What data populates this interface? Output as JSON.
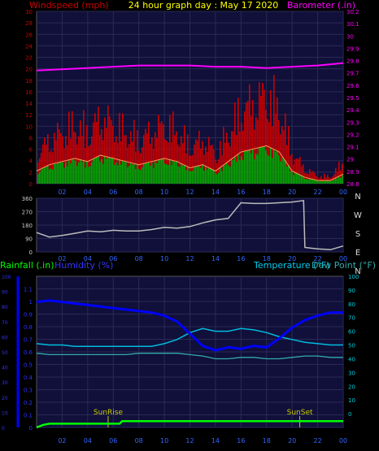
{
  "header": {
    "left_label": "Windspeed (mph)",
    "title": "24 hour graph day : May 17 2020",
    "right_label": "Barometer (.in)"
  },
  "colors": {
    "windspeed": "#cc0000",
    "windspeed_avg": "#ff3333",
    "gust_trend": "#ff9955",
    "wind_green": "#00aa00",
    "barometer": "#ff00ff",
    "direction": "#bbbbbb",
    "rainfall": "#00ff00",
    "humidity": "#0000ff",
    "temperature": "#00bbdd",
    "dewpoint": "#33aaaa",
    "sun_marker": "#cccc00",
    "plot_bg": "#10103a",
    "grid": "#2a2a55"
  },
  "chart_data": [
    {
      "type": "line",
      "name": "wind-barometer",
      "x_ticks": [
        "02",
        "04",
        "06",
        "08",
        "10",
        "12",
        "14",
        "16",
        "18",
        "20",
        "22",
        "00"
      ],
      "left_axis": {
        "label": "Windspeed (mph)",
        "ylim": [
          0,
          30
        ],
        "ticks": [
          "0",
          "2",
          "4",
          "6",
          "8",
          "10",
          "12",
          "14",
          "16",
          "18",
          "20",
          "22",
          "24",
          "26",
          "28",
          "30"
        ]
      },
      "right_axis": {
        "label": "Barometer (.in)",
        "ylim": [
          28.8,
          30.2
        ],
        "ticks": [
          "28.8",
          "28.9",
          "29",
          "29.1",
          "29.2",
          "29.3",
          "29.4",
          "29.5",
          "29.6",
          "29.7",
          "29.8",
          "29.9",
          "30",
          "30.1",
          "30.2"
        ]
      },
      "series": [
        {
          "name": "Barometer (.in)",
          "axis": "right",
          "x": [
            0,
            2,
            4,
            6,
            8,
            10,
            12,
            14,
            16,
            18,
            20,
            22,
            24
          ],
          "values": [
            29.72,
            29.73,
            29.74,
            29.75,
            29.76,
            29.76,
            29.76,
            29.75,
            29.75,
            29.74,
            29.75,
            29.76,
            29.78
          ]
        },
        {
          "name": "Windspeed (mph)",
          "axis": "left",
          "x": [
            0,
            1,
            2,
            3,
            4,
            5,
            6,
            7,
            8,
            9,
            10,
            11,
            12,
            13,
            14,
            15,
            16,
            17,
            18,
            19,
            20,
            21,
            22,
            23,
            24
          ],
          "values": [
            4,
            6,
            7,
            8,
            7,
            9,
            8,
            7,
            6,
            7,
            8,
            7,
            5,
            6,
            4,
            7,
            10,
            11,
            12,
            10,
            4,
            2,
            1,
            1,
            3
          ]
        }
      ]
    },
    {
      "type": "line",
      "name": "wind-direction",
      "x_ticks": [
        "02",
        "04",
        "06",
        "08",
        "10",
        "12",
        "14",
        "16",
        "18",
        "20",
        "22",
        "00"
      ],
      "left_axis": {
        "ylim": [
          0,
          360
        ],
        "ticks": [
          "0",
          "90",
          "180",
          "270",
          "360"
        ]
      },
      "right_labels": [
        "N",
        "W",
        "S",
        "E",
        "N"
      ],
      "series": [
        {
          "name": "Wind direction",
          "x": [
            0,
            1,
            2,
            3,
            4,
            5,
            6,
            7,
            8,
            9,
            10,
            11,
            12,
            13,
            14,
            15,
            16,
            17,
            18,
            19,
            20,
            20.9,
            21,
            22,
            23,
            24
          ],
          "values": [
            130,
            100,
            110,
            125,
            140,
            135,
            145,
            140,
            140,
            150,
            165,
            160,
            170,
            195,
            215,
            225,
            330,
            325,
            325,
            330,
            335,
            345,
            30,
            20,
            15,
            40
          ]
        }
      ]
    },
    {
      "type": "line",
      "name": "rain-humidity-temperature",
      "labels": {
        "rainfall": "Rainfall (.in)",
        "humidity": "Humidity (%)",
        "temperature": "Temperature (°F)",
        "dewpoint": "Dew Point (°F)"
      },
      "x_ticks": [
        "02",
        "04",
        "06",
        "08",
        "10",
        "12",
        "14",
        "16",
        "18",
        "20",
        "22",
        "00"
      ],
      "humidity_axis": {
        "ylim": [
          0,
          100
        ],
        "ticks": [
          "0",
          "10",
          "20",
          "30",
          "40",
          "50",
          "60",
          "70",
          "80",
          "90",
          "100"
        ]
      },
      "rain_axis": {
        "ylim": [
          0,
          1.2
        ],
        "ticks": [
          "0",
          "0.1",
          "0.2",
          "0.3",
          "0.4",
          "0.5",
          "0.6",
          "0.7",
          "0.8",
          "0.9",
          "1",
          "1.1"
        ]
      },
      "temp_axis": {
        "ylim": [
          -10,
          100
        ],
        "ticks": [
          "0",
          "10",
          "20",
          "30",
          "40",
          "50",
          "60",
          "70",
          "80",
          "90",
          "100"
        ]
      },
      "annotations": [
        {
          "label": "SunRise",
          "x": 5.6
        },
        {
          "label": "SunSet",
          "x": 20.6
        }
      ],
      "series": [
        {
          "name": "Humidity (%)",
          "axis": "humidity",
          "x": [
            0,
            1,
            2,
            3,
            4,
            5,
            6,
            7,
            8,
            9,
            10,
            11,
            12,
            13,
            14,
            15,
            16,
            17,
            18,
            19,
            20,
            21,
            22,
            23,
            24
          ],
          "values": [
            83,
            84,
            83,
            82,
            81,
            80,
            79,
            78,
            77,
            76,
            74,
            70,
            62,
            54,
            51,
            53,
            52,
            54,
            53,
            59,
            66,
            71,
            74,
            76,
            76
          ]
        },
        {
          "name": "Temperature (°F)",
          "axis": "temp",
          "x": [
            0,
            1,
            2,
            3,
            4,
            5,
            6,
            7,
            8,
            9,
            10,
            11,
            12,
            13,
            14,
            15,
            16,
            17,
            18,
            19,
            20,
            21,
            22,
            23,
            24
          ],
          "values": [
            51,
            50,
            50,
            49,
            49,
            49,
            49,
            49,
            49,
            49,
            51,
            54,
            59,
            62,
            60,
            60,
            62,
            61,
            59,
            56,
            54,
            52,
            51,
            50,
            50
          ]
        },
        {
          "name": "Dew Point (°F)",
          "axis": "temp",
          "x": [
            0,
            1,
            2,
            3,
            4,
            5,
            6,
            7,
            8,
            9,
            10,
            11,
            12,
            13,
            14,
            15,
            16,
            17,
            18,
            19,
            20,
            21,
            22,
            23,
            24
          ],
          "values": [
            44,
            43,
            43,
            43,
            43,
            43,
            43,
            43,
            44,
            44,
            44,
            44,
            43,
            42,
            40,
            40,
            41,
            41,
            40,
            40,
            41,
            42,
            42,
            41,
            41
          ]
        },
        {
          "name": "Rainfall (.in)",
          "axis": "rain",
          "x": [
            0,
            0.5,
            1,
            6.5,
            6.7,
            24
          ],
          "values": [
            0,
            0.02,
            0.03,
            0.03,
            0.05,
            0.05
          ]
        }
      ]
    }
  ]
}
